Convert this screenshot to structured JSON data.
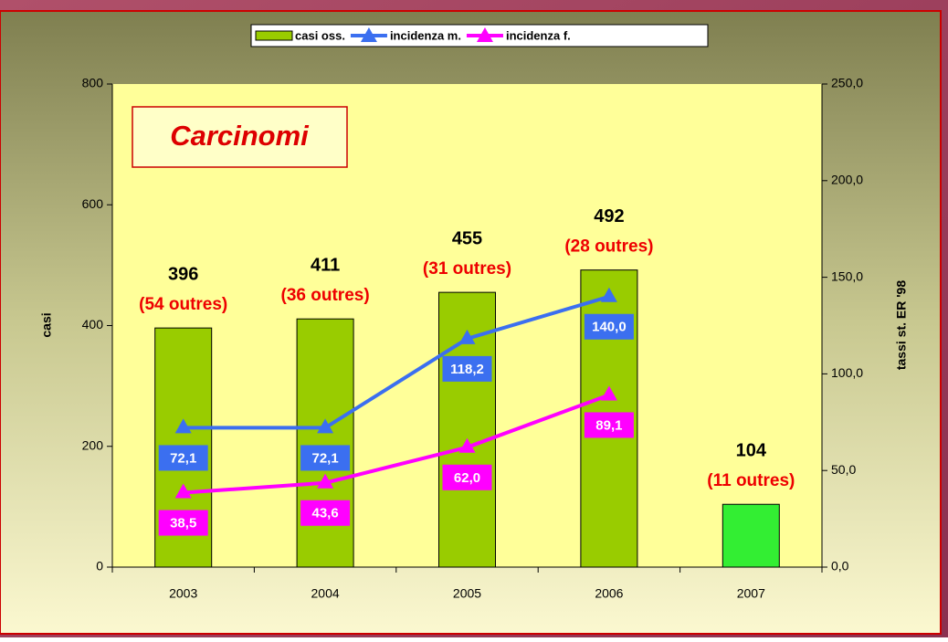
{
  "chart_data": {
    "type": "bar",
    "title": "Carcinomi",
    "categories": [
      "2003",
      "2004",
      "2005",
      "2006",
      "2007"
    ],
    "ylabel": "casi",
    "y2label": "tassi st. ER '98",
    "ylim": [
      0,
      800
    ],
    "yticks": [
      0,
      200,
      400,
      600,
      800
    ],
    "y2lim": [
      0,
      250
    ],
    "y2ticks": [
      {
        "value": 0,
        "label": "0,0"
      },
      {
        "value": 50,
        "label": "50,0"
      },
      {
        "value": 100,
        "label": "100,0"
      },
      {
        "value": 150,
        "label": "150,0"
      },
      {
        "value": 200,
        "label": "200,0"
      },
      {
        "value": 250,
        "label": "250,0"
      }
    ],
    "series": [
      {
        "name": "casi oss.",
        "type": "bar",
        "color": "#99cc00",
        "colors": [
          "#99cc00",
          "#99cc00",
          "#99cc00",
          "#99cc00",
          "#33ee33"
        ],
        "values": [
          396,
          411,
          455,
          492,
          104
        ],
        "annotations": [
          "(54 outres)",
          "(36 outres)",
          "(31 outres)",
          "(28 outres)",
          "(11 outres)"
        ]
      },
      {
        "name": "incidenza m.",
        "type": "line",
        "axis": "y2",
        "color": "#3b6ff0",
        "values": [
          72.1,
          72.1,
          118.2,
          140.0,
          null
        ],
        "value_labels": [
          "72,1",
          "72,1",
          "118,2",
          "140,0",
          null
        ]
      },
      {
        "name": "incidenza f.",
        "type": "line",
        "axis": "y2",
        "color": "#ff00ff",
        "values": [
          38.5,
          43.6,
          62.0,
          89.1,
          null
        ],
        "value_labels": [
          "38,5",
          "43,6",
          "62,0",
          "89,1",
          null
        ]
      }
    ]
  }
}
